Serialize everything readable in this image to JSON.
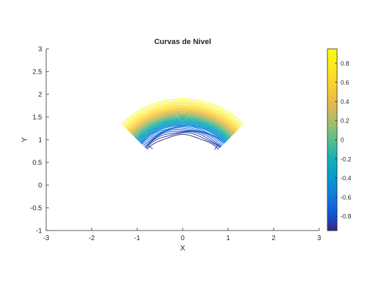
{
  "chart_data": {
    "type": "contour",
    "title": "Curvas de Nivel",
    "xlabel": "X",
    "ylabel": "Y",
    "xlim": [
      -3,
      3
    ],
    "ylim": [
      -1,
      3
    ],
    "xticks": [
      "-3",
      "-2",
      "-1",
      "0",
      "1",
      "2",
      "3"
    ],
    "yticks": [
      "-1",
      "-0.5",
      "0",
      "0.5",
      "1",
      "1.5",
      "2",
      "2.5",
      "3"
    ],
    "region": {
      "shape": "annular-sector",
      "center": [
        0,
        0
      ],
      "r_inner": 1.0,
      "r_outer": 2.0,
      "theta_deg": [
        45,
        135
      ]
    },
    "levels_min": -0.95,
    "levels_max": 0.95,
    "level_count": 40,
    "colorbar": {
      "range": [
        -0.95,
        0.95
      ],
      "ticks": [
        "-0.8",
        "-0.6",
        "-0.4",
        "-0.2",
        "0",
        "0.2",
        "0.4",
        "0.6",
        "0.8"
      ],
      "tick_values": [
        -0.8,
        -0.6,
        -0.4,
        -0.2,
        0,
        0.2,
        0.4,
        0.6,
        0.8
      ],
      "colormap": "parula"
    },
    "grid": false,
    "box": false
  }
}
